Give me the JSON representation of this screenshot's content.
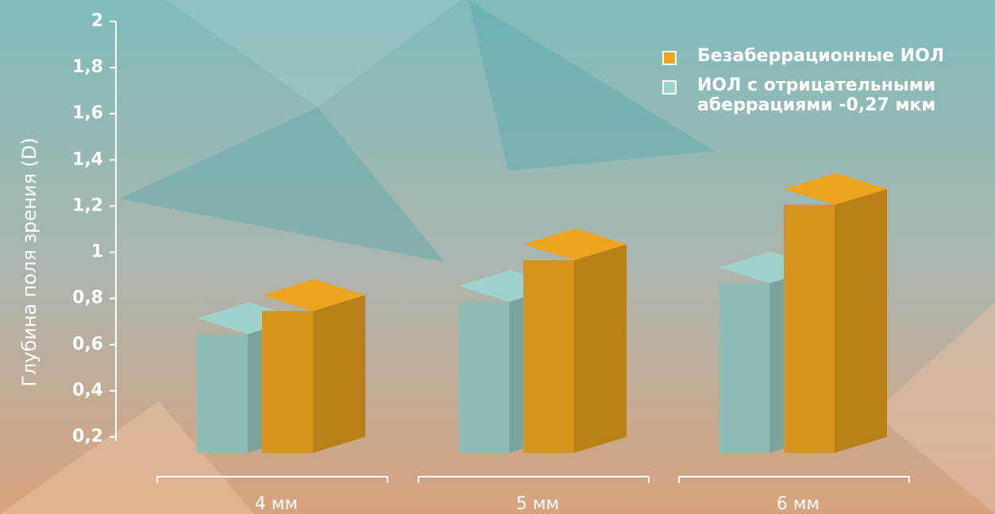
{
  "chart_data": {
    "type": "bar3d",
    "y_label": "Глубина поля зрения (D)",
    "categories": [
      "4 мм",
      "5 мм",
      "6 мм"
    ],
    "series": [
      {
        "name": "Безаберрационные ИОЛ",
        "color": "#eea41f",
        "values": [
          0.78,
          1.0,
          1.24
        ]
      },
      {
        "name": "ИОЛ с отрицательными аберрациями -0,27 мкм",
        "color": "#9fd2ca",
        "values": [
          0.68,
          0.82,
          0.9
        ]
      }
    ],
    "ylim": [
      0.2,
      2
    ],
    "yticks": [
      {
        "value": 0.2,
        "label": "0,2"
      },
      {
        "value": 0.4,
        "label": "0,4"
      },
      {
        "value": 0.6,
        "label": "0,6"
      },
      {
        "value": 0.8,
        "label": "0,8"
      },
      1,
      {
        "value": 1.2,
        "label": "1,2"
      },
      {
        "value": 1.4,
        "label": "1,4"
      },
      {
        "value": 1.6,
        "label": "1,6"
      },
      {
        "value": 1.8,
        "label": "1,8"
      },
      2
    ],
    "legend": "top-right"
  }
}
